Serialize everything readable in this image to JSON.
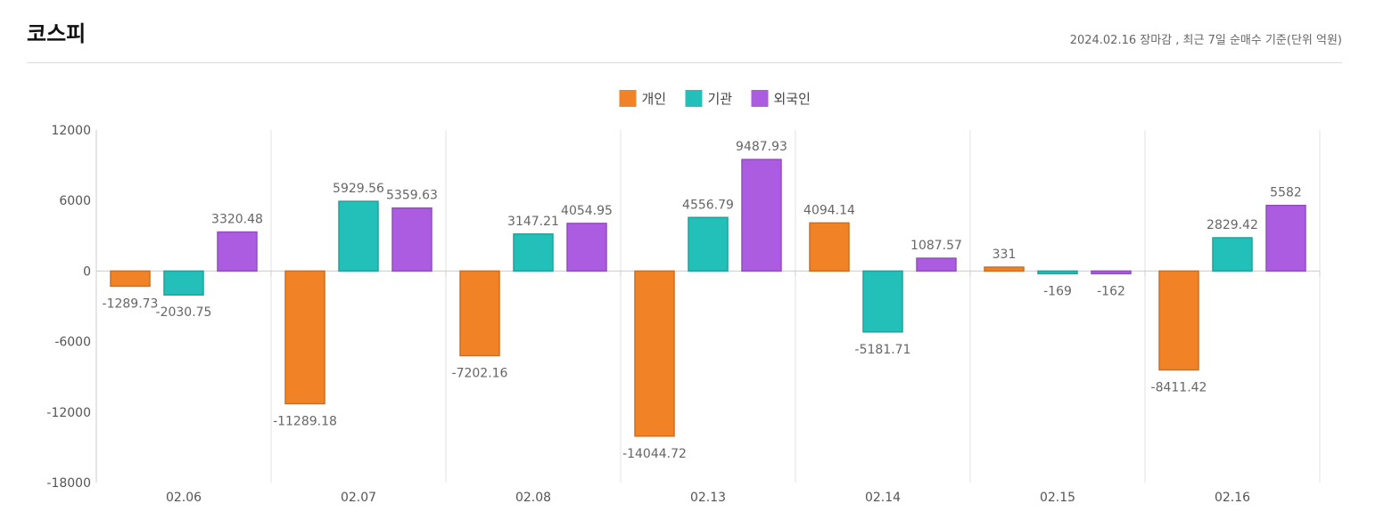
{
  "page": {
    "title": "코스피",
    "subtitle": "2024.02.16 장마감 , 최근 7일 순매수 기준(단위 억원)"
  },
  "chart_data": {
    "type": "bar",
    "categories": [
      "02.06",
      "02.07",
      "02.08",
      "02.13",
      "02.14",
      "02.15",
      "02.16"
    ],
    "series": [
      {
        "name": "개인",
        "color": "#f28226",
        "values": [
          -1289.73,
          -11289.18,
          -7202.16,
          -14044.72,
          4094.14,
          331,
          -8411.42
        ]
      },
      {
        "name": "기관",
        "color": "#22c0b8",
        "values": [
          -2030.75,
          5929.56,
          3147.21,
          4556.79,
          -5181.71,
          -169,
          2829.42
        ]
      },
      {
        "name": "외국인",
        "color": "#ab5ce0",
        "values": [
          3320.48,
          5359.63,
          4054.95,
          9487.93,
          1087.57,
          -162,
          5582
        ]
      }
    ],
    "ylim": [
      -18000,
      12000
    ],
    "yticks": [
      12000,
      6000,
      0,
      -6000,
      -12000,
      -18000
    ],
    "legend_position": "top-center",
    "grid": "vertical category separators"
  }
}
